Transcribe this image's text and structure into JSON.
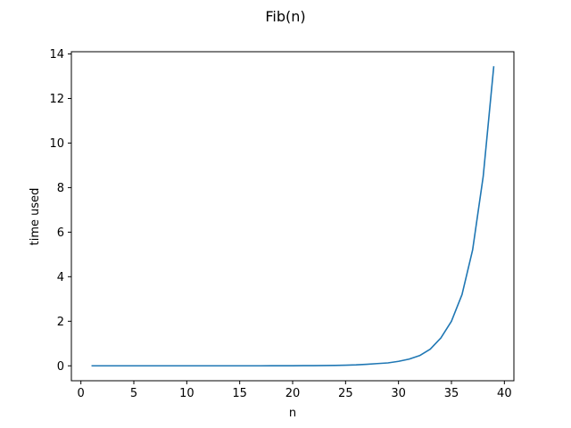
{
  "chart_data": {
    "type": "line",
    "title": "Fib(n)",
    "xlabel": "n",
    "ylabel": "time used",
    "xlim": [
      -0.9,
      40.9
    ],
    "ylim": [
      -0.67,
      14.1
    ],
    "xticks": [
      0,
      5,
      10,
      15,
      20,
      25,
      30,
      35,
      40
    ],
    "yticks": [
      0,
      2,
      4,
      6,
      8,
      10,
      12,
      14
    ],
    "grid": false,
    "legend": "none",
    "series": [
      {
        "color": "#1f77b4",
        "x": [
          1,
          2,
          3,
          4,
          5,
          6,
          7,
          8,
          9,
          10,
          11,
          12,
          13,
          14,
          15,
          16,
          17,
          18,
          19,
          20,
          21,
          22,
          23,
          24,
          25,
          26,
          27,
          28,
          29,
          30,
          31,
          32,
          33,
          34,
          35,
          36,
          37,
          38,
          39
        ],
        "y": [
          0,
          0,
          0,
          0,
          0,
          0,
          0,
          0,
          0,
          0,
          0,
          0,
          0,
          0,
          0,
          0.001,
          0.001,
          0.002,
          0.003,
          0.004,
          0.006,
          0.008,
          0.012,
          0.019,
          0.028,
          0.042,
          0.068,
          0.1,
          0.13,
          0.2,
          0.3,
          0.46,
          0.75,
          1.25,
          2.0,
          3.2,
          5.2,
          8.5,
          13.45
        ]
      }
    ]
  }
}
